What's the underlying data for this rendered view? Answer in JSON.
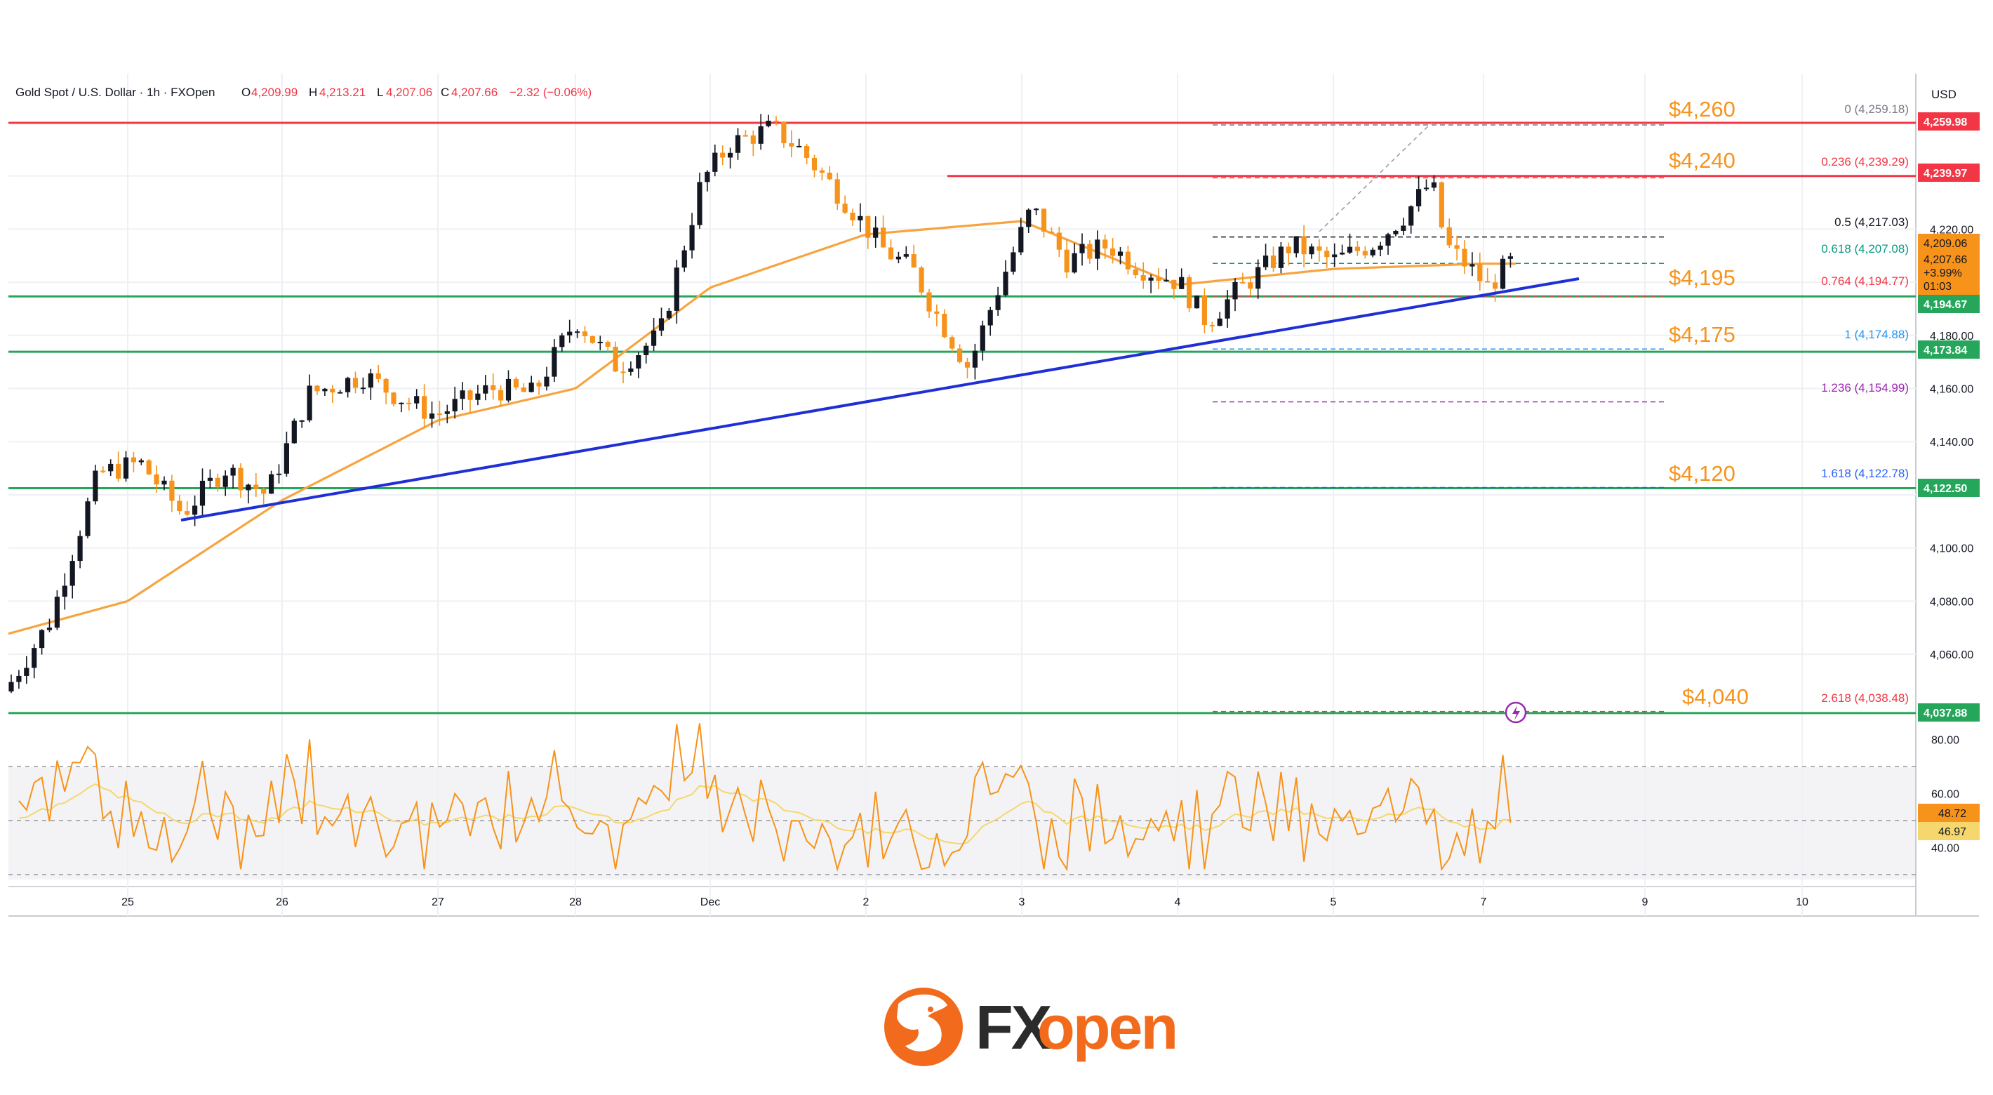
{
  "header": {
    "symbol": "Gold Spot / U.S. Dollar · 1h · FXOpen",
    "o_label": "O",
    "o_value": "4,209.99",
    "h_label": "H",
    "h_value": "4,213.21",
    "l_label": "L",
    "l_value": "4,207.06",
    "c_label": "C",
    "c_value": "4,207.66",
    "change": "−2.32 (−0.06%)"
  },
  "axis": {
    "currency": "USD",
    "y_ticks": [
      "4,220.00",
      "4,180.00",
      "4,160.00",
      "4,140.00",
      "4,100.00",
      "4,080.00",
      "4,060.00"
    ],
    "x_ticks": [
      "25",
      "26",
      "27",
      "28",
      "Dec",
      "2",
      "3",
      "4",
      "5",
      "7",
      "9",
      "10"
    ],
    "rsi_ticks": [
      "80.00",
      "60.00",
      "40.00"
    ]
  },
  "price_tags": {
    "red_top": "4,259.98",
    "red_second": "4,239.97",
    "current_high": "4,209.06",
    "current_close": "4,207.66",
    "current_pct": "+3.99%",
    "countdown": "01:03",
    "support_1": "4,194.67",
    "support_2": "4,173.84",
    "support_3": "4,122.50",
    "support_4": "4,037.88",
    "rsi_1": "48.72",
    "rsi_2": "46.97"
  },
  "levels": [
    "$4,260",
    "$4,240",
    "$4,195",
    "$4,175",
    "$4,120",
    "$4,040"
  ],
  "fib": [
    {
      "text": "0 (4,259.18)",
      "color": "#787b86"
    },
    {
      "text": "0.236 (4,239.29)",
      "color": "#f23645"
    },
    {
      "text": "0.5 (4,217.03)",
      "color": "#131722"
    },
    {
      "text": "0.618 (4,207.08)",
      "color": "#089981"
    },
    {
      "text": "0.764 (4,194.77)",
      "color": "#f23645"
    },
    {
      "text": "1 (4,174.88)",
      "color": "#2196f3"
    },
    {
      "text": "1.236 (4,154.99)",
      "color": "#9c27b0"
    },
    {
      "text": "1.618 (4,122.78)",
      "color": "#2962ff"
    },
    {
      "text": "2.618 (4,038.48)",
      "color": "#f23645"
    }
  ],
  "brand": {
    "fx": "FX",
    "open": "open"
  },
  "colors": {
    "up": "#131722",
    "down": "#f7931a",
    "ma": "#f7a440",
    "trend": "#1f2fd6",
    "support": "#26a65b",
    "resistance": "#f23645",
    "rsi": "#f7931a",
    "rsi_ma": "#f5d76e"
  },
  "chart_data": {
    "type": "candlestick",
    "title": "Gold Spot / U.S. Dollar · 1h · FXOpen",
    "ylabel": "USD",
    "ylim": [
      4030,
      4270
    ],
    "x_range": [
      "Nov 24",
      "Dec 10"
    ],
    "horizontal_levels": [
      4259.98,
      4239.97,
      4194.67,
      4173.84,
      4122.5,
      4037.88
    ],
    "fib_levels": [
      4259.18,
      4239.29,
      4217.03,
      4207.08,
      4194.77,
      4174.88,
      4154.99,
      4122.78,
      4038.48
    ],
    "trendline": [
      {
        "x": "Nov 25",
        "y": 4110
      },
      {
        "x": "Dec 7",
        "y": 4196
      }
    ],
    "ema_waypoints": [
      {
        "x": "Nov 24",
        "y": 4064
      },
      {
        "x": "Nov 25",
        "y": 4080
      },
      {
        "x": "Nov 26",
        "y": 4118
      },
      {
        "x": "Nov 27",
        "y": 4148
      },
      {
        "x": "Nov 28",
        "y": 4160
      },
      {
        "x": "Dec 1",
        "y": 4198
      },
      {
        "x": "Dec 2",
        "y": 4218
      },
      {
        "x": "Dec 3",
        "y": 4223
      },
      {
        "x": "Dec 4",
        "y": 4199
      },
      {
        "x": "Dec 5",
        "y": 4205
      },
      {
        "x": "Dec 7",
        "y": 4207
      }
    ],
    "rsi": {
      "ylim": [
        25,
        90
      ],
      "levels": [
        70,
        50,
        30
      ],
      "last": [
        48.72,
        46.97
      ]
    }
  }
}
